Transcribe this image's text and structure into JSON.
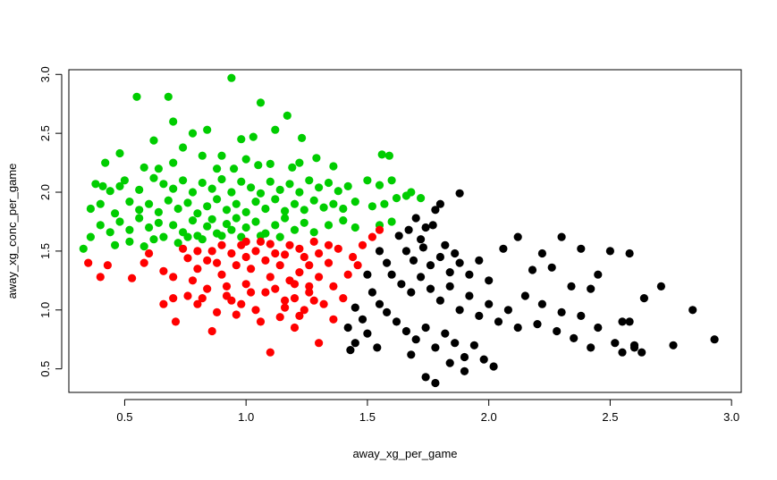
{
  "chart_data": {
    "type": "scatter",
    "xlabel": "away_xg_per_game",
    "ylabel": "away_xg_conc_per_game",
    "xlim": [
      0.27,
      3.04
    ],
    "ylim": [
      0.3,
      3.04
    ],
    "x_ticks": [
      "0.5",
      "1.0",
      "1.5",
      "2.0",
      "2.5",
      "3.0"
    ],
    "y_ticks": [
      "0.5",
      "1.0",
      "1.5",
      "2.0",
      "2.5",
      "3.0"
    ],
    "grid": false,
    "legend": "none",
    "series": [
      {
        "color": "#00cd00",
        "points": [
          [
            0.55,
            2.81
          ],
          [
            0.68,
            2.81
          ],
          [
            0.94,
            2.97
          ],
          [
            1.06,
            2.76
          ],
          [
            1.17,
            2.65
          ],
          [
            0.7,
            2.6
          ],
          [
            0.62,
            2.44
          ],
          [
            0.78,
            2.5
          ],
          [
            0.84,
            2.53
          ],
          [
            0.98,
            2.45
          ],
          [
            1.03,
            2.47
          ],
          [
            1.12,
            2.53
          ],
          [
            1.23,
            2.46
          ],
          [
            0.48,
            2.33
          ],
          [
            0.42,
            2.25
          ],
          [
            0.58,
            2.21
          ],
          [
            0.64,
            2.2
          ],
          [
            0.7,
            2.25
          ],
          [
            0.74,
            2.38
          ],
          [
            0.82,
            2.31
          ],
          [
            0.88,
            2.2
          ],
          [
            0.9,
            2.31
          ],
          [
            0.95,
            2.2
          ],
          [
            1.0,
            2.28
          ],
          [
            1.05,
            2.23
          ],
          [
            1.1,
            2.24
          ],
          [
            1.19,
            2.21
          ],
          [
            1.22,
            2.25
          ],
          [
            1.29,
            2.29
          ],
          [
            1.36,
            2.22
          ],
          [
            1.56,
            2.32
          ],
          [
            1.59,
            2.31
          ],
          [
            0.38,
            2.07
          ],
          [
            0.41,
            2.05
          ],
          [
            0.44,
            2.01
          ],
          [
            0.48,
            2.05
          ],
          [
            0.5,
            2.1
          ],
          [
            0.56,
            2.02
          ],
          [
            0.62,
            2.12
          ],
          [
            0.66,
            2.07
          ],
          [
            0.7,
            2.03
          ],
          [
            0.74,
            2.1
          ],
          [
            0.78,
            2.0
          ],
          [
            0.82,
            2.08
          ],
          [
            0.86,
            2.03
          ],
          [
            0.9,
            2.11
          ],
          [
            0.94,
            2.0
          ],
          [
            0.98,
            2.09
          ],
          [
            1.02,
            2.04
          ],
          [
            1.06,
            1.99
          ],
          [
            1.1,
            2.09
          ],
          [
            1.14,
            2.02
          ],
          [
            1.18,
            2.07
          ],
          [
            1.22,
            2.0
          ],
          [
            1.26,
            2.1
          ],
          [
            1.3,
            2.04
          ],
          [
            1.34,
            2.08
          ],
          [
            1.38,
            2.01
          ],
          [
            1.42,
            2.05
          ],
          [
            1.5,
            2.1
          ],
          [
            1.55,
            2.06
          ],
          [
            1.6,
            2.1
          ],
          [
            1.68,
            2.0
          ],
          [
            0.36,
            1.86
          ],
          [
            0.4,
            1.9
          ],
          [
            0.46,
            1.82
          ],
          [
            0.52,
            1.92
          ],
          [
            0.56,
            1.85
          ],
          [
            0.6,
            1.9
          ],
          [
            0.64,
            1.83
          ],
          [
            0.68,
            1.93
          ],
          [
            0.72,
            1.86
          ],
          [
            0.76,
            1.91
          ],
          [
            0.8,
            1.82
          ],
          [
            0.84,
            1.88
          ],
          [
            0.88,
            1.94
          ],
          [
            0.92,
            1.85
          ],
          [
            0.96,
            1.9
          ],
          [
            1.0,
            1.83
          ],
          [
            1.04,
            1.92
          ],
          [
            1.08,
            1.86
          ],
          [
            1.12,
            1.94
          ],
          [
            1.16,
            1.84
          ],
          [
            1.2,
            1.9
          ],
          [
            1.24,
            1.85
          ],
          [
            1.28,
            1.93
          ],
          [
            1.32,
            1.87
          ],
          [
            1.36,
            1.9
          ],
          [
            1.4,
            1.86
          ],
          [
            1.45,
            1.92
          ],
          [
            1.52,
            1.88
          ],
          [
            1.57,
            1.9
          ],
          [
            1.62,
            1.95
          ],
          [
            1.66,
            1.97
          ],
          [
            1.72,
            1.95
          ],
          [
            0.33,
            1.52
          ],
          [
            0.36,
            1.62
          ],
          [
            0.4,
            1.72
          ],
          [
            0.44,
            1.66
          ],
          [
            0.48,
            1.75
          ],
          [
            0.52,
            1.68
          ],
          [
            0.56,
            1.78
          ],
          [
            0.6,
            1.7
          ],
          [
            0.64,
            1.74
          ],
          [
            0.66,
            1.62
          ],
          [
            0.7,
            1.72
          ],
          [
            0.74,
            1.66
          ],
          [
            0.78,
            1.76
          ],
          [
            0.8,
            1.63
          ],
          [
            0.84,
            1.71
          ],
          [
            0.86,
            1.77
          ],
          [
            0.88,
            1.65
          ],
          [
            0.92,
            1.73
          ],
          [
            0.94,
            1.68
          ],
          [
            0.96,
            1.78
          ],
          [
            1.0,
            1.7
          ],
          [
            1.04,
            1.75
          ],
          [
            1.08,
            1.65
          ],
          [
            1.12,
            1.72
          ],
          [
            1.16,
            1.78
          ],
          [
            1.2,
            1.68
          ],
          [
            1.24,
            1.74
          ],
          [
            1.28,
            1.66
          ],
          [
            1.34,
            1.72
          ],
          [
            1.4,
            1.76
          ],
          [
            1.45,
            1.7
          ],
          [
            1.55,
            1.72
          ],
          [
            1.6,
            1.75
          ],
          [
            0.46,
            1.55
          ],
          [
            0.52,
            1.58
          ],
          [
            0.58,
            1.54
          ],
          [
            0.62,
            1.6
          ],
          [
            0.72,
            1.57
          ],
          [
            0.76,
            1.62
          ],
          [
            0.82,
            1.6
          ],
          [
            0.9,
            1.63
          ],
          [
            0.98,
            1.62
          ],
          [
            1.06,
            1.63
          ],
          [
            1.14,
            1.62
          ]
        ]
      },
      {
        "color": "#ff0000",
        "points": [
          [
            0.35,
            1.4
          ],
          [
            0.4,
            1.28
          ],
          [
            0.43,
            1.38
          ],
          [
            0.53,
            1.27
          ],
          [
            0.58,
            1.4
          ],
          [
            0.6,
            1.48
          ],
          [
            0.66,
            1.33
          ],
          [
            0.66,
            1.05
          ],
          [
            0.7,
            1.1
          ],
          [
            0.71,
            0.9
          ],
          [
            0.7,
            1.28
          ],
          [
            0.74,
            1.52
          ],
          [
            0.76,
            1.44
          ],
          [
            0.78,
            1.25
          ],
          [
            0.8,
            1.35
          ],
          [
            0.82,
            1.1
          ],
          [
            0.84,
            1.18
          ],
          [
            0.86,
            0.82
          ],
          [
            0.86,
            1.5
          ],
          [
            0.88,
            1.4
          ],
          [
            0.9,
            1.3
          ],
          [
            0.92,
            1.2
          ],
          [
            0.94,
            1.08
          ],
          [
            0.96,
            0.96
          ],
          [
            0.98,
            1.55
          ],
          [
            1.0,
            1.45
          ],
          [
            1.0,
            1.22
          ],
          [
            1.02,
            1.35
          ],
          [
            1.04,
            1.0
          ],
          [
            1.06,
            0.9
          ],
          [
            1.06,
            1.58
          ],
          [
            1.08,
            1.15
          ],
          [
            1.1,
            0.64
          ],
          [
            1.1,
            1.28
          ],
          [
            1.12,
            1.48
          ],
          [
            1.14,
            0.94
          ],
          [
            1.14,
            1.38
          ],
          [
            1.16,
            1.08
          ],
          [
            1.18,
            1.55
          ],
          [
            1.2,
            1.22
          ],
          [
            1.2,
            0.85
          ],
          [
            1.22,
            1.32
          ],
          [
            1.24,
            1.0
          ],
          [
            1.24,
            1.45
          ],
          [
            1.26,
            1.15
          ],
          [
            1.28,
            1.58
          ],
          [
            1.3,
            0.72
          ],
          [
            1.3,
            1.28
          ],
          [
            1.32,
            1.05
          ],
          [
            1.34,
            1.4
          ],
          [
            1.36,
            0.92
          ],
          [
            1.36,
            1.2
          ],
          [
            1.38,
            1.52
          ],
          [
            1.4,
            1.1
          ],
          [
            1.42,
            1.3
          ],
          [
            1.44,
            1.45
          ],
          [
            1.46,
            1.38
          ],
          [
            1.48,
            1.55
          ],
          [
            1.52,
            1.62
          ],
          [
            1.55,
            1.68
          ],
          [
            0.8,
            1.5
          ],
          [
            0.84,
            1.42
          ],
          [
            0.9,
            1.55
          ],
          [
            0.94,
            1.48
          ],
          [
            0.96,
            1.38
          ],
          [
            1.0,
            1.58
          ],
          [
            1.04,
            1.5
          ],
          [
            1.08,
            1.42
          ],
          [
            1.1,
            1.56
          ],
          [
            1.16,
            1.47
          ],
          [
            1.22,
            1.52
          ],
          [
            1.26,
            1.38
          ],
          [
            1.3,
            1.48
          ],
          [
            1.34,
            1.55
          ],
          [
            1.18,
            1.25
          ],
          [
            1.12,
            1.18
          ],
          [
            1.2,
            1.1
          ],
          [
            1.16,
            1.02
          ],
          [
            1.26,
            1.2
          ],
          [
            1.22,
            0.95
          ],
          [
            1.28,
            1.08
          ],
          [
            0.92,
            1.12
          ],
          [
            0.98,
            1.05
          ],
          [
            1.02,
            1.15
          ],
          [
            0.88,
            0.98
          ],
          [
            0.8,
            1.05
          ],
          [
            0.76,
            1.12
          ]
        ]
      },
      {
        "color": "#000000",
        "points": [
          [
            1.88,
            1.99
          ],
          [
            1.8,
            1.9
          ],
          [
            1.7,
            1.78
          ],
          [
            1.74,
            1.7
          ],
          [
            1.78,
            1.85
          ],
          [
            1.67,
            1.68
          ],
          [
            1.72,
            1.6
          ],
          [
            1.77,
            1.72
          ],
          [
            1.82,
            1.55
          ],
          [
            1.86,
            1.48
          ],
          [
            1.63,
            1.63
          ],
          [
            1.66,
            1.5
          ],
          [
            1.69,
            1.42
          ],
          [
            1.73,
            1.53
          ],
          [
            1.76,
            1.38
          ],
          [
            1.8,
            1.45
          ],
          [
            1.84,
            1.32
          ],
          [
            1.88,
            1.4
          ],
          [
            1.92,
            1.3
          ],
          [
            1.96,
            1.42
          ],
          [
            2.0,
            1.25
          ],
          [
            1.55,
            1.5
          ],
          [
            1.58,
            1.4
          ],
          [
            1.6,
            1.3
          ],
          [
            1.64,
            1.22
          ],
          [
            1.68,
            1.15
          ],
          [
            1.72,
            1.28
          ],
          [
            1.76,
            1.18
          ],
          [
            1.8,
            1.08
          ],
          [
            1.84,
            1.2
          ],
          [
            1.88,
            1.0
          ],
          [
            1.92,
            1.12
          ],
          [
            1.96,
            0.95
          ],
          [
            2.0,
            1.05
          ],
          [
            2.04,
            0.9
          ],
          [
            2.08,
            1.0
          ],
          [
            2.12,
            0.85
          ],
          [
            1.5,
            1.3
          ],
          [
            1.52,
            1.15
          ],
          [
            1.55,
            1.05
          ],
          [
            1.58,
            0.98
          ],
          [
            1.62,
            0.9
          ],
          [
            1.66,
            0.82
          ],
          [
            1.7,
            0.75
          ],
          [
            1.74,
            0.85
          ],
          [
            1.78,
            0.68
          ],
          [
            1.82,
            0.8
          ],
          [
            1.86,
            0.72
          ],
          [
            1.9,
            0.6
          ],
          [
            1.94,
            0.7
          ],
          [
            1.98,
            0.58
          ],
          [
            2.02,
            0.52
          ],
          [
            1.45,
            1.02
          ],
          [
            1.48,
            0.92
          ],
          [
            1.42,
            0.85
          ],
          [
            1.45,
            0.72
          ],
          [
            1.5,
            0.8
          ],
          [
            1.54,
            0.68
          ],
          [
            1.43,
            0.66
          ],
          [
            1.68,
            0.62
          ],
          [
            1.74,
            0.43
          ],
          [
            1.78,
            0.38
          ],
          [
            1.84,
            0.55
          ],
          [
            1.9,
            0.48
          ],
          [
            2.06,
            1.52
          ],
          [
            2.12,
            1.62
          ],
          [
            2.22,
            1.48
          ],
          [
            2.3,
            1.62
          ],
          [
            2.38,
            1.52
          ],
          [
            2.45,
            1.3
          ],
          [
            2.5,
            1.5
          ],
          [
            2.58,
            1.48
          ],
          [
            2.18,
            1.34
          ],
          [
            2.26,
            1.36
          ],
          [
            2.34,
            1.2
          ],
          [
            2.42,
            1.18
          ],
          [
            2.15,
            1.12
          ],
          [
            2.22,
            1.05
          ],
          [
            2.3,
            0.98
          ],
          [
            2.38,
            0.95
          ],
          [
            2.2,
            0.88
          ],
          [
            2.28,
            0.82
          ],
          [
            2.35,
            0.76
          ],
          [
            2.45,
            0.85
          ],
          [
            2.42,
            0.68
          ],
          [
            2.52,
            0.72
          ],
          [
            2.6,
            0.68
          ],
          [
            2.55,
            0.64
          ],
          [
            2.55,
            0.9
          ],
          [
            2.64,
            1.1
          ],
          [
            2.71,
            1.2
          ],
          [
            2.76,
            0.7
          ],
          [
            2.84,
            1.0
          ],
          [
            2.93,
            0.75
          ],
          [
            2.6,
            0.7
          ],
          [
            2.58,
            0.9
          ],
          [
            2.63,
            0.64
          ]
        ]
      }
    ]
  }
}
